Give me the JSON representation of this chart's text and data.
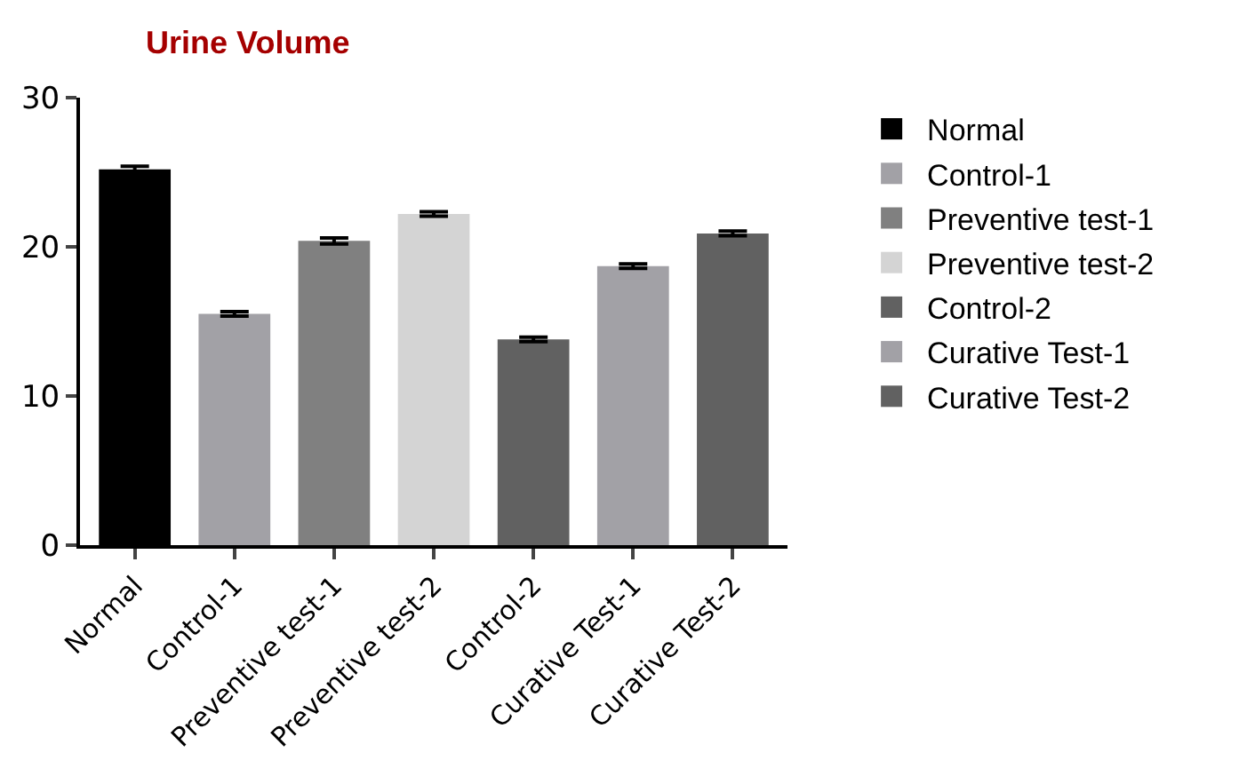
{
  "chart_data": {
    "type": "bar",
    "title": "Urine Volume",
    "categories": [
      "Normal",
      "Control-1",
      "Preventive test-1",
      "Preventive test-2",
      "Control-2",
      "Curative Test-1",
      "Curative Test-2"
    ],
    "series": [
      {
        "name": "Normal",
        "color": "#000000",
        "values": [
          25.2,
          null,
          null,
          null,
          null,
          null,
          null
        ],
        "errors": [
          0.2,
          null,
          null,
          null,
          null,
          null,
          null
        ]
      },
      {
        "name": "Control-1",
        "color": "#a2a1a6",
        "values": [
          null,
          15.5,
          null,
          null,
          null,
          null,
          null
        ],
        "errors": [
          null,
          0.15,
          null,
          null,
          null,
          null,
          null
        ]
      },
      {
        "name": "Preventive test-1",
        "color": "#808080",
        "values": [
          null,
          null,
          20.4,
          null,
          null,
          null,
          null
        ],
        "errors": [
          null,
          null,
          0.2,
          null,
          null,
          null,
          null
        ]
      },
      {
        "name": "Preventive test-2",
        "color": "#d4d4d4",
        "values": [
          null,
          null,
          null,
          22.2,
          null,
          null,
          null
        ],
        "errors": [
          null,
          null,
          null,
          0.15,
          null,
          null,
          null
        ]
      },
      {
        "name": "Control-2",
        "color": "#616161",
        "values": [
          null,
          null,
          null,
          null,
          13.8,
          null,
          null
        ],
        "errors": [
          null,
          null,
          null,
          null,
          0.15,
          null,
          null
        ]
      },
      {
        "name": "Curative Test-1",
        "color": "#a2a1a6",
        "values": [
          null,
          null,
          null,
          null,
          null,
          18.7,
          null
        ],
        "errors": [
          null,
          null,
          null,
          null,
          null,
          0.15,
          null
        ]
      },
      {
        "name": "Curative Test-2",
        "color": "#616161",
        "values": [
          null,
          null,
          null,
          null,
          null,
          null,
          20.9
        ],
        "errors": [
          null,
          null,
          null,
          null,
          null,
          null,
          0.15
        ]
      }
    ],
    "ylim": [
      0,
      30
    ],
    "yticks": [
      0,
      10,
      20,
      30
    ],
    "legend": "right"
  }
}
